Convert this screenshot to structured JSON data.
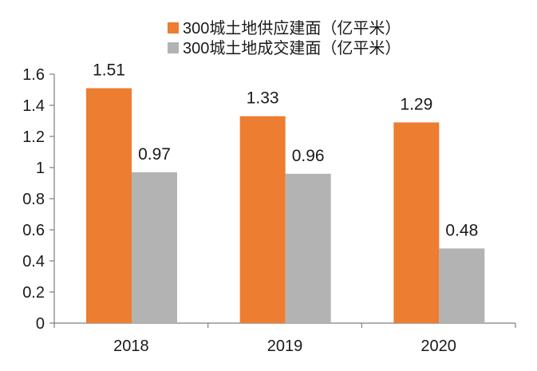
{
  "chart_data": {
    "type": "bar",
    "title": "",
    "xlabel": "",
    "ylabel": "",
    "categories": [
      "2018",
      "2019",
      "2020"
    ],
    "series": [
      {
        "name": "300城土地供应建面（亿平米）",
        "color": "#ED7D31",
        "values": [
          1.51,
          1.33,
          1.29
        ],
        "labels": [
          "1.51",
          "1.33",
          "1.29"
        ]
      },
      {
        "name": "300城土地成交建面（亿平米）",
        "color": "#B3B3B3",
        "values": [
          0.97,
          0.96,
          0.48
        ],
        "labels": [
          "0.97",
          "0.96",
          "0.48"
        ]
      }
    ],
    "ylim": [
      0,
      1.6
    ],
    "yticks": [
      0,
      0.2,
      0.4,
      0.6,
      0.8,
      1,
      1.2,
      1.4,
      1.6
    ],
    "ytick_labels": [
      "0",
      "0.2",
      "0.4",
      "0.6",
      "0.8",
      "1",
      "1.2",
      "1.4",
      "1.6"
    ],
    "grid": false,
    "legend_position": "top"
  }
}
